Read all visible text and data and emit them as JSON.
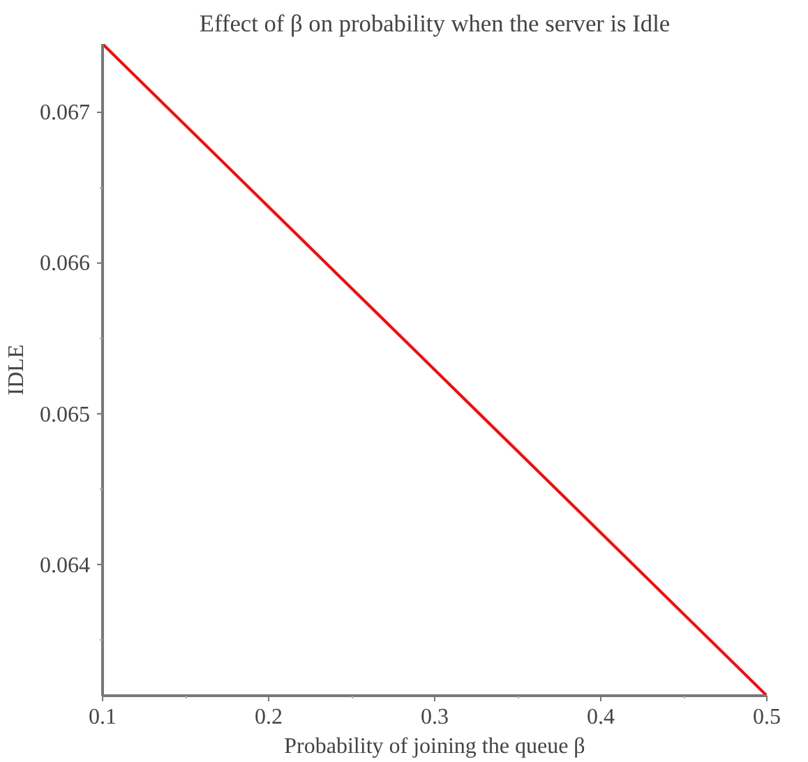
{
  "chart_data": {
    "type": "line",
    "title": "Effect of β on probability when the server is Idle",
    "xlabel": "Probability of joining the queue β",
    "ylabel": "IDLE",
    "x": [
      0.1,
      0.3,
      0.5
    ],
    "series": [
      {
        "color": "#ff0000",
        "values": [
          0.06745,
          0.06529,
          0.06313
        ]
      }
    ],
    "xlim": [
      0.1,
      0.5
    ],
    "ylim": [
      0.06313,
      0.06745
    ],
    "xticks": [
      0.1,
      {
        "value": 0.15,
        "label": null
      },
      0.2,
      {
        "value": 0.25,
        "label": null
      },
      0.3,
      {
        "value": 0.35,
        "label": null
      },
      0.4,
      {
        "value": 0.45,
        "label": null
      },
      0.5
    ],
    "yticks": [
      {
        "value": 0.0635,
        "label": null
      },
      0.064,
      {
        "value": 0.0645,
        "label": null
      },
      0.065,
      {
        "value": 0.0655,
        "label": null
      },
      0.066,
      {
        "value": 0.0665,
        "label": null
      },
      0.067
    ],
    "grid": false,
    "marker": "none",
    "line_style": "solid"
  }
}
